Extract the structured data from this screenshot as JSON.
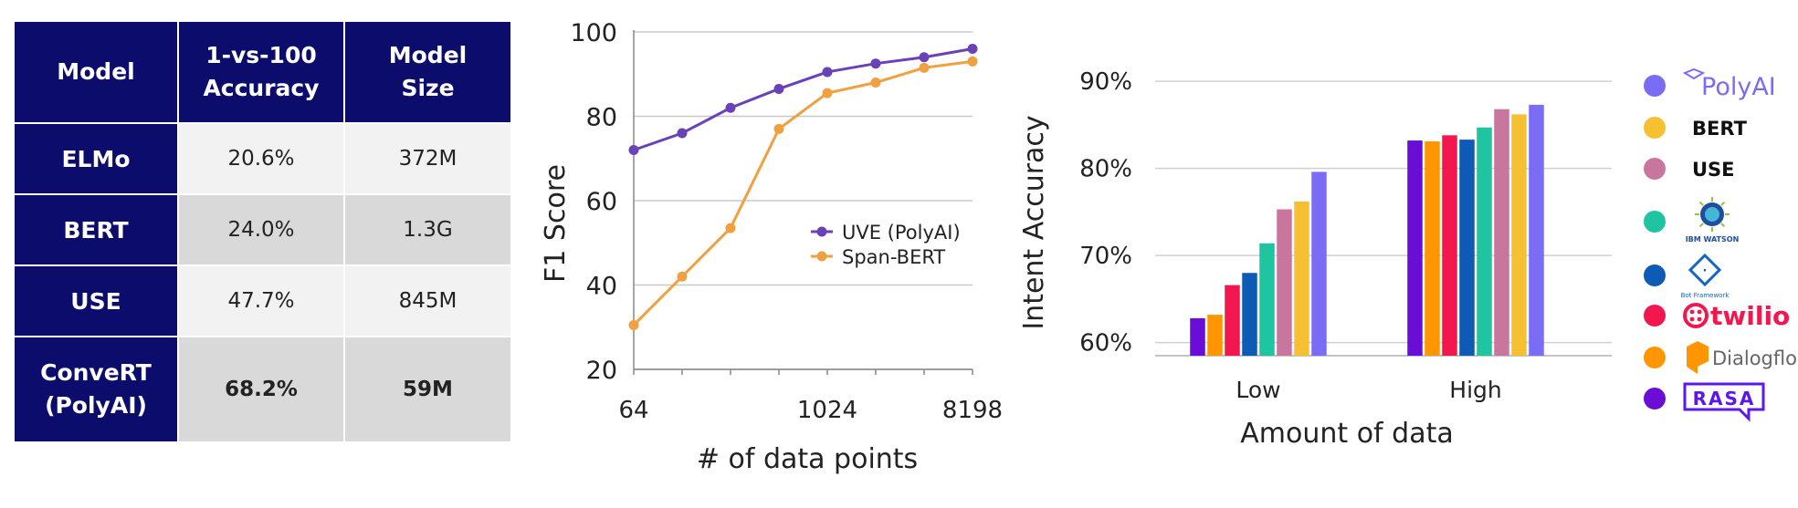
{
  "table": {
    "headers": [
      "Model",
      "1-vs-100\nAccuracy",
      "Model\nSize"
    ],
    "rows": [
      {
        "model": "ELMo",
        "accuracy": "20.6%",
        "size": "372M"
      },
      {
        "model": "BERT",
        "accuracy": "24.0%",
        "size": "1.3G"
      },
      {
        "model": "USE",
        "accuracy": "47.7%",
        "size": "845M"
      },
      {
        "model": "ConveRT\n(PolyAI)",
        "accuracy": "68.2%",
        "size": "59M"
      }
    ]
  },
  "chart_data": [
    {
      "type": "line",
      "title": "",
      "xlabel": "# of data points",
      "ylabel": "F1 Score",
      "x_tick_labels": [
        "64",
        "1024",
        "8198"
      ],
      "yticks": [
        20,
        40,
        60,
        80,
        100
      ],
      "ylim": [
        20,
        100
      ],
      "grid": "horizontal",
      "legend_position": "center-right",
      "x": [
        64,
        128,
        256,
        512,
        1024,
        2048,
        4096,
        8198
      ],
      "series": [
        {
          "name": "UVE (PolyAI)",
          "color": "#6a42b8",
          "values": [
            72,
            76,
            82,
            86.5,
            90.5,
            92.5,
            94,
            96
          ]
        },
        {
          "name": "Span-BERT",
          "color": "#f0a040",
          "values": [
            30.5,
            42,
            53.5,
            77,
            85.5,
            88,
            91.5,
            93
          ]
        }
      ]
    },
    {
      "type": "bar",
      "title": "",
      "xlabel": "Amount of data",
      "ylabel": "Intent Accuracy",
      "categories": [
        "Low",
        "High"
      ],
      "yticks": [
        "60%",
        "70%",
        "80%",
        "90%"
      ],
      "ylim": [
        58.5,
        92
      ],
      "grid": "horizontal",
      "legend_position": "right",
      "series": [
        {
          "name": "RASA",
          "color": "#6a0dd6",
          "values": [
            62.8,
            83.2
          ]
        },
        {
          "name": "Dialogflow",
          "color": "#ff9500",
          "values": [
            63.2,
            83.1
          ]
        },
        {
          "name": "twilio",
          "color": "#f2174e",
          "values": [
            66.6,
            83.8
          ]
        },
        {
          "name": "Bot Framework",
          "color": "#0d5bb5",
          "values": [
            68.0,
            83.3
          ]
        },
        {
          "name": "IBM WATSON",
          "color": "#1fc4a1",
          "values": [
            71.4,
            84.7
          ]
        },
        {
          "name": "USE",
          "color": "#c9769f",
          "values": [
            75.3,
            86.8
          ]
        },
        {
          "name": "BERT",
          "color": "#f5c031",
          "values": [
            76.2,
            86.2
          ]
        },
        {
          "name": "PolyAI",
          "color": "#7a6cf5",
          "values": [
            79.6,
            87.3
          ]
        }
      ],
      "legend": [
        {
          "label": "PolyAI",
          "color": "#7a6cf5",
          "icon": "polyai-logo-icon"
        },
        {
          "label": "BERT",
          "color": "#f5c031",
          "icon": ""
        },
        {
          "label": "USE",
          "color": "#c9769f",
          "icon": ""
        },
        {
          "label": "IBM WATSON",
          "color": "#1fc4a1",
          "icon": "ibm-watson-logo-icon"
        },
        {
          "label": "Bot Framework",
          "color": "#0d5bb5",
          "icon": "bot-framework-logo-icon"
        },
        {
          "label": "twilio",
          "color": "#f2174e",
          "icon": "twilio-logo-icon"
        },
        {
          "label": "Dialogflow",
          "color": "#ff9500",
          "icon": "dialogflow-logo-icon"
        },
        {
          "label": "RASA",
          "color": "#6a0dd6",
          "icon": "rasa-logo-icon"
        }
      ]
    }
  ]
}
